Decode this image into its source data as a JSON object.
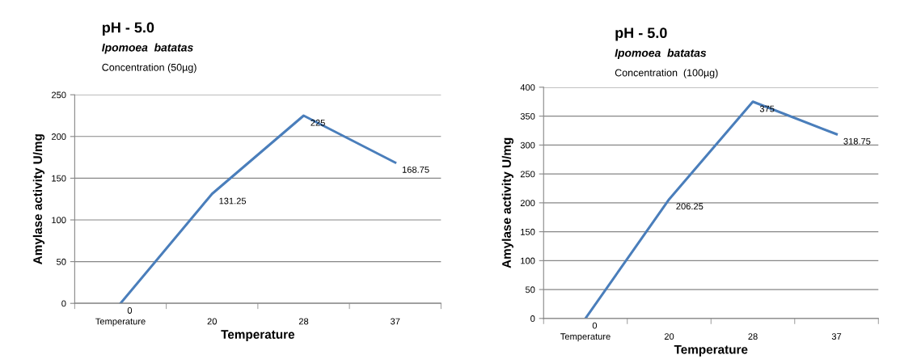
{
  "chart_data": [
    {
      "type": "line",
      "title": "pH - 5.0",
      "subtitle": "Ipomoea  batatas",
      "annotations": [
        "Concentration (50µg)"
      ],
      "categories": [
        "Temperature",
        "20",
        "28",
        "37"
      ],
      "series": [
        {
          "color": "#4a7ebb",
          "values": [
            0,
            131.25,
            225,
            168.75
          ]
        }
      ],
      "xlabel": "Temperature",
      "ylabel": "Amylase activity U/mg",
      "ylim": [
        0,
        250
      ],
      "yticks": [
        0,
        50,
        100,
        150,
        200,
        250
      ],
      "grid": "y",
      "data_labels": true,
      "marker": "none",
      "line_style": "solid"
    },
    {
      "type": "line",
      "title": "pH - 5.0",
      "subtitle": "Ipomoea  batatas",
      "annotations": [
        "Concentration  (100µg)"
      ],
      "categories": [
        "Temperature",
        "20",
        "28",
        "37"
      ],
      "series": [
        {
          "color": "#4a7ebb",
          "values": [
            0,
            206.25,
            375,
            318.75
          ]
        }
      ],
      "xlabel": "Temperature",
      "ylabel": "Amylase activity U/mg",
      "ylim": [
        0,
        400
      ],
      "yticks": [
        0,
        50,
        100,
        150,
        200,
        250,
        300,
        350,
        400
      ],
      "grid": "y",
      "data_labels": true,
      "marker": "none",
      "line_style": "solid"
    }
  ]
}
